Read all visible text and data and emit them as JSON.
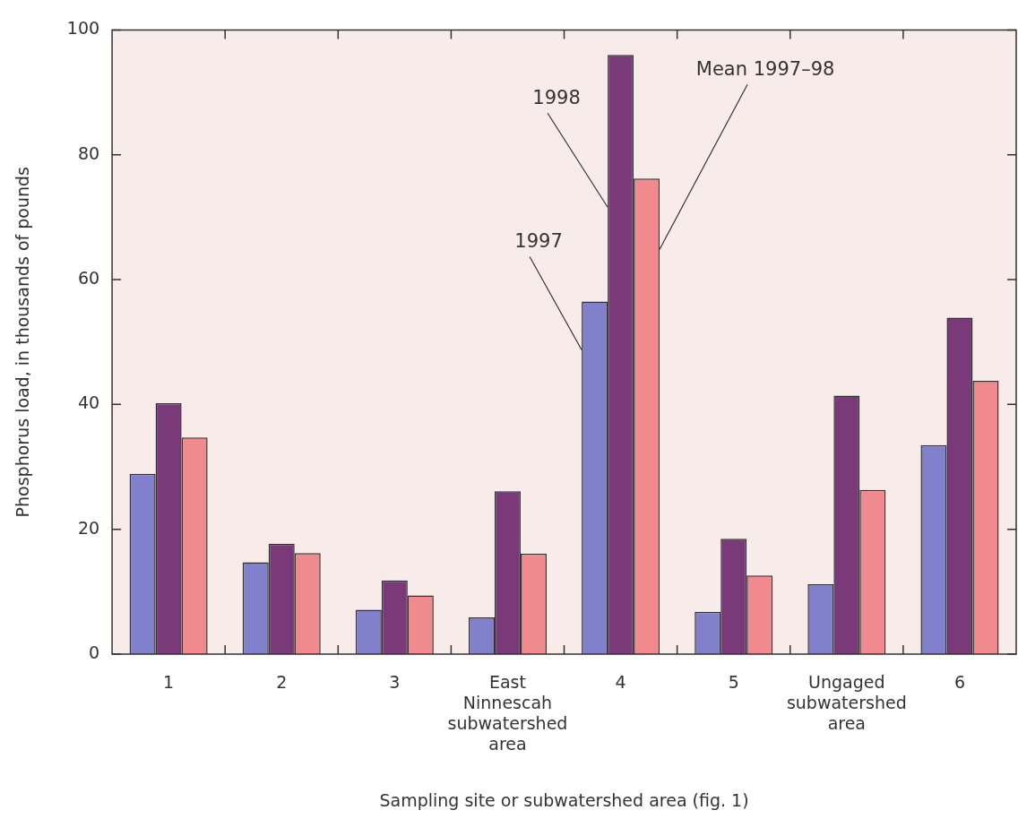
{
  "chart_data": {
    "type": "bar",
    "xlabel": "Sampling site or subwatershed area (fig. 1)",
    "ylabel": "Phosphorus load, in thousands of pounds",
    "categories": [
      "1",
      "2",
      "3",
      "East Ninnescah subwatershed area",
      "4",
      "5",
      "Ungaged subwatershed area",
      "6"
    ],
    "series": [
      {
        "name": "1997",
        "color": "#8080cc",
        "values": [
          28.9,
          14.7,
          7.1,
          5.9,
          56.5,
          6.8,
          11.2,
          33.5
        ]
      },
      {
        "name": "1998",
        "color": "#7a3a7a",
        "values": [
          40.2,
          17.7,
          11.8,
          26.1,
          96.0,
          18.5,
          41.4,
          53.9
        ]
      },
      {
        "name": "Mean 1997–98",
        "color": "#f08a8e",
        "values": [
          34.7,
          16.2,
          9.4,
          16.1,
          76.2,
          12.6,
          26.3,
          43.8
        ]
      }
    ],
    "ylim": [
      0,
      100
    ],
    "yticks": [
      0,
      20,
      40,
      60,
      80,
      100
    ],
    "grid": false
  }
}
